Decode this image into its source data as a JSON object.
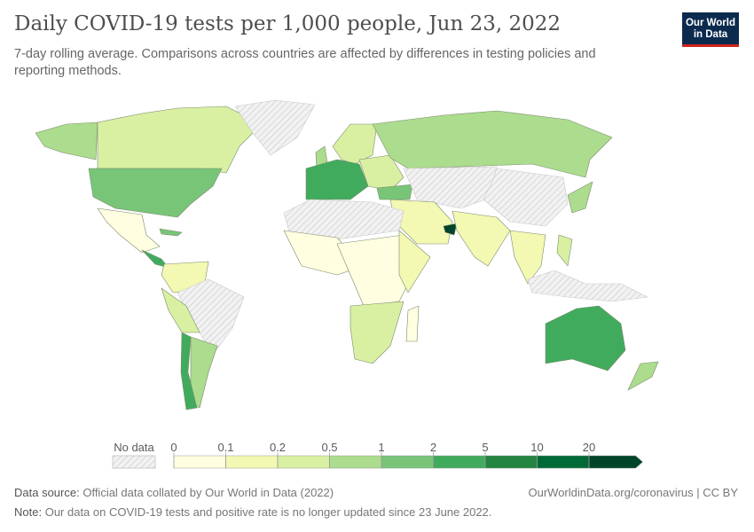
{
  "header": {
    "title": "Daily COVID-19 tests per 1,000 people, Jun 23, 2022",
    "subtitle": "7-day rolling average. Comparisons across countries are affected by differences in testing policies and reporting methods.",
    "logo_text": "Our World in Data"
  },
  "legend": {
    "no_data_label": "No data",
    "ticks": [
      "0",
      "0.1",
      "0.2",
      "0.5",
      "1",
      "2",
      "5",
      "10",
      "20"
    ],
    "bin_colors": [
      "#fffee0",
      "#f3f8b2",
      "#d9f0a2",
      "#acdc8d",
      "#78c578",
      "#41ab5d",
      "#23843f",
      "#006a36",
      "#00452a"
    ],
    "no_data_color": "#e6e6e6"
  },
  "footer": {
    "source_label": "Data source:",
    "source_text": "Official data collated by Our World in Data (2022)",
    "url_text": "OurWorldinData.org/coronavirus | CC BY",
    "note_label": "Note:",
    "note_text": "Our data on COVID-19 tests and positive rate is no longer updated since 23 June 2022."
  }
}
